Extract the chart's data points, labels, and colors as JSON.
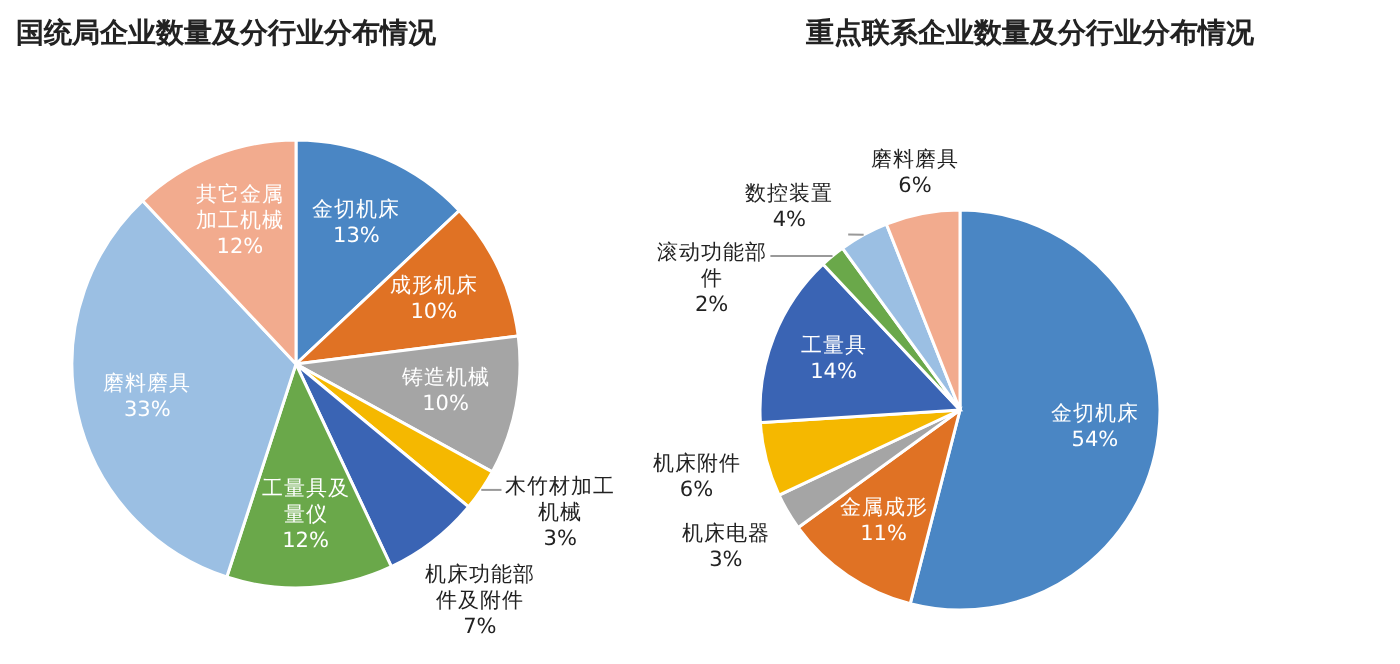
{
  "chart_data": [
    {
      "type": "pie",
      "title": "国统局企业数量及分行业分布情况",
      "categories": [
        "金切机床",
        "成形机床",
        "铸造机械",
        "木竹材加工机械",
        "机床功能部件及附件",
        "工量具及量仪",
        "磨料磨具",
        "其它金属加工机械"
      ],
      "values": [
        13,
        10,
        10,
        3,
        7,
        12,
        33,
        12
      ],
      "value_labels": [
        "13%",
        "10%",
        "10%",
        "3%",
        "7%",
        "12%",
        "33%",
        "12%"
      ],
      "colors": [
        "#4a86c4",
        "#e07224",
        "#a5a5a5",
        "#f5b800",
        "#3a64b4",
        "#6aa84a",
        "#9bbfe3",
        "#f2ab8e"
      ]
    },
    {
      "type": "pie",
      "title": "重点联系企业数量及分行业分布情况",
      "categories": [
        "金切机床",
        "金属成形",
        "机床电器",
        "机床附件",
        "工量具",
        "滚动功能部件",
        "数控装置",
        "磨料磨具"
      ],
      "values": [
        54,
        11,
        3,
        6,
        14,
        2,
        4,
        6
      ],
      "value_labels": [
        "54%",
        "11%",
        "3%",
        "6%",
        "14%",
        "2%",
        "4%",
        "6%"
      ],
      "colors": [
        "#4a86c4",
        "#e07224",
        "#a5a5a5",
        "#f5b800",
        "#3a64b4",
        "#6aa84a",
        "#9bbfe3",
        "#f2ab8e"
      ]
    }
  ]
}
